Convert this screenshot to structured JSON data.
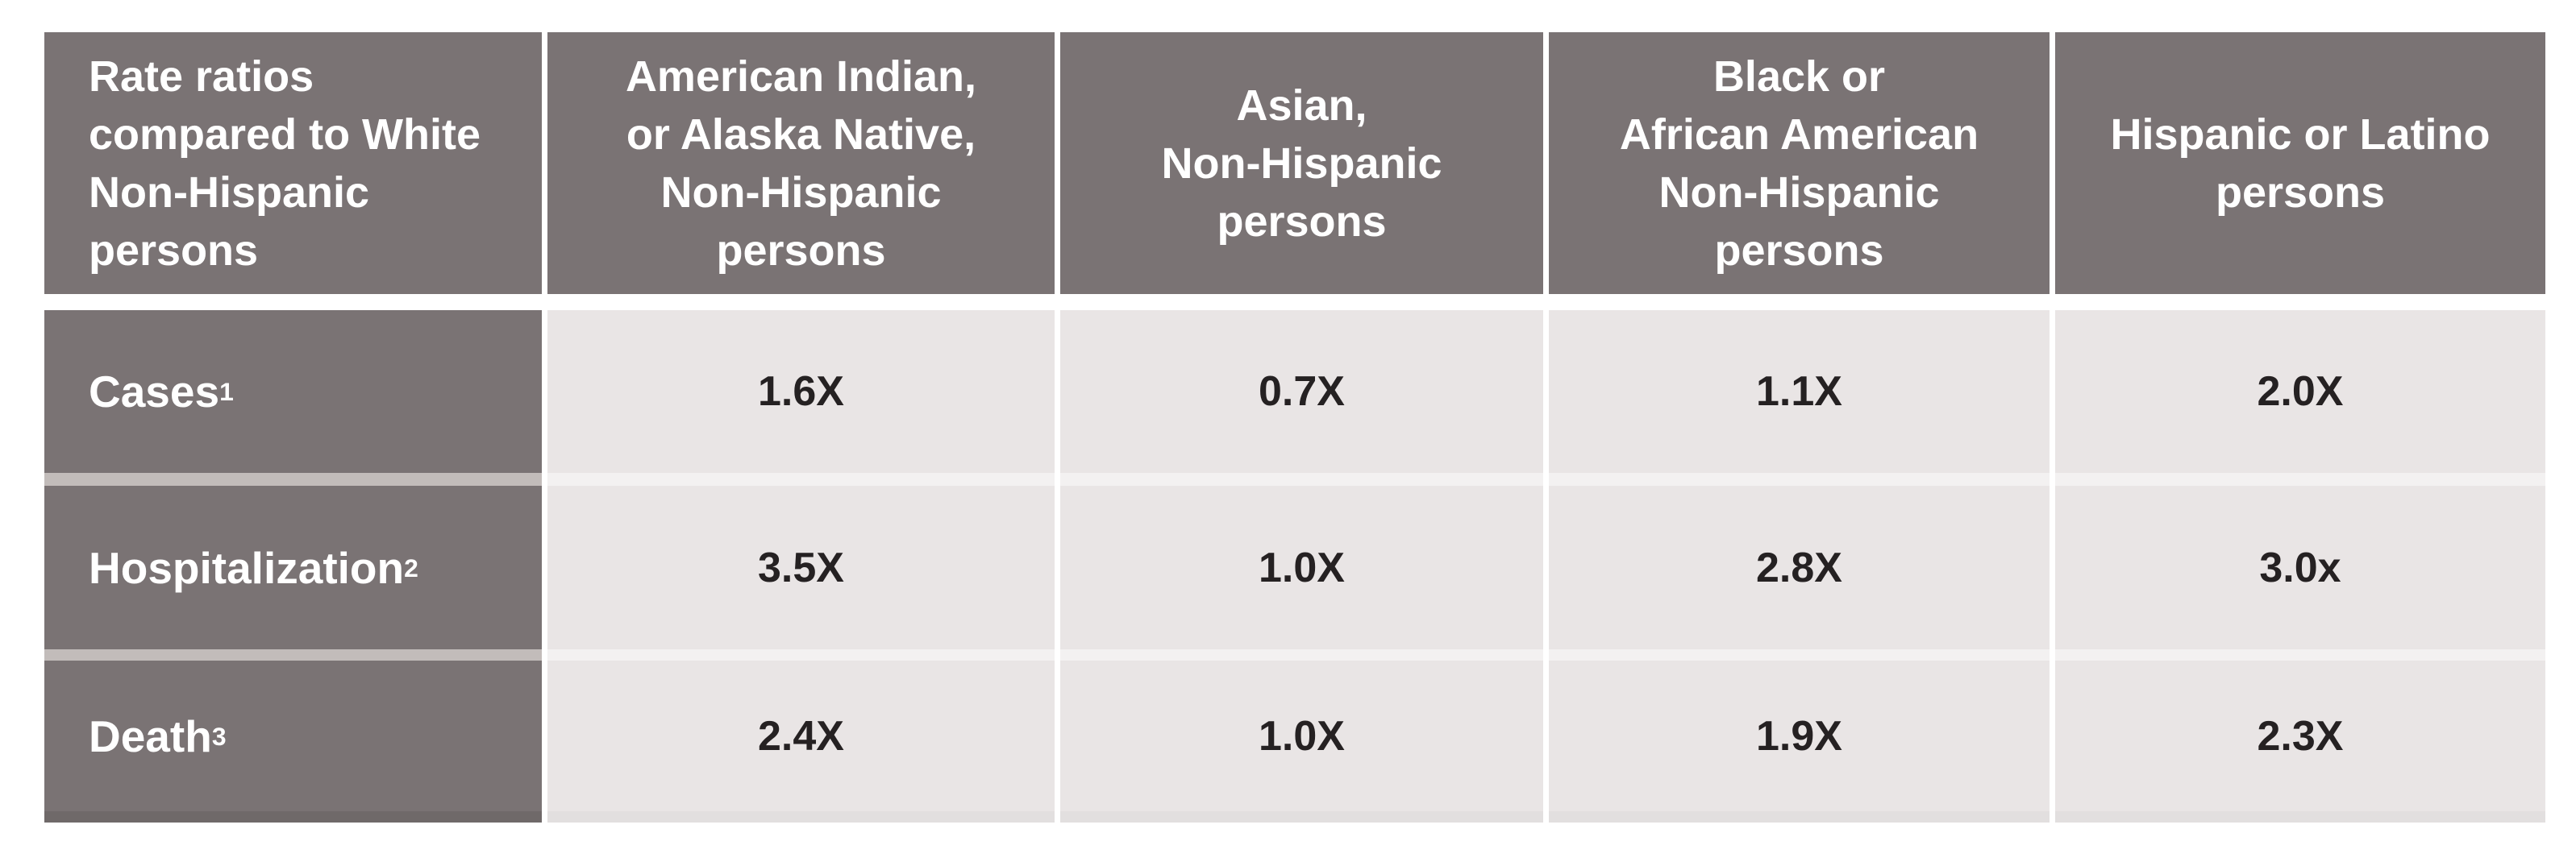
{
  "chart_data": {
    "type": "table",
    "columns": [
      "Rate ratios compared to White Non-Hispanic persons",
      "American Indian, or Alaska Native, Non-Hispanic persons",
      "Asian, Non-Hispanic persons",
      "Black or African American Non-Hispanic persons",
      "Hispanic or Latino persons"
    ],
    "rows": [
      [
        "Cases¹",
        "1.6X",
        "0.7X",
        "1.1X",
        "2.0X"
      ],
      [
        "Hospitalization²",
        "3.5X",
        "1.0X",
        "2.8X",
        "3.0x"
      ],
      [
        "Death³",
        "2.4X",
        "1.0X",
        "1.9X",
        "2.3X"
      ]
    ],
    "layout": "banded table, dark header row and dark first column, white gaps between rows and columns"
  },
  "table": {
    "corner_header": "Rate ratios\ncompared to White\nNon-Hispanic\npersons",
    "column_headers": [
      "American Indian,\nor Alaska Native,\nNon-Hispanic\npersons",
      "Asian,\nNon-Hispanic\npersons",
      "Black or\nAfrican American\nNon-Hispanic\npersons",
      "Hispanic or Latino\npersons"
    ],
    "rows": [
      {
        "label": "Cases",
        "sup": "1",
        "values": [
          "1.6X",
          "0.7X",
          "1.1X",
          "2.0X"
        ]
      },
      {
        "label": "Hospitalization",
        "sup": "2",
        "values": [
          "3.5X",
          "1.0X",
          "2.8X",
          "3.0x"
        ]
      },
      {
        "label": "Death",
        "sup": "3",
        "values": [
          "2.4X",
          "1.0X",
          "1.9X",
          "2.3X"
        ]
      }
    ],
    "colors": {
      "header_bg": "#7a7374",
      "header_text": "#ffffff",
      "cell_bg": "#e9e5e5",
      "cell_text": "#252122",
      "divider": "#ffffff",
      "row_band_dark_col": "#c2bcba",
      "row_band_light_col": "#f3f1f1"
    }
  }
}
